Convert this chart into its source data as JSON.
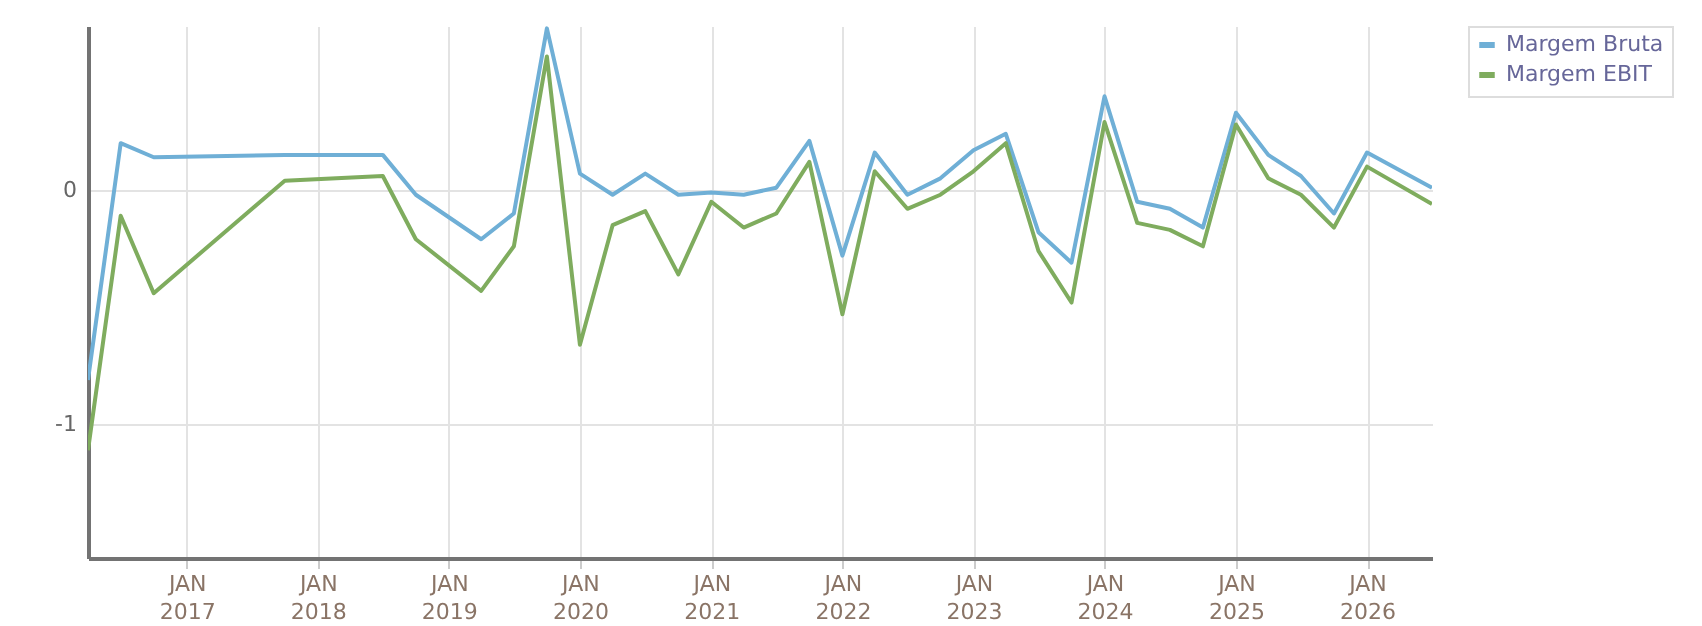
{
  "chart_data": {
    "type": "line",
    "x": [
      "2016-04",
      "2016-07",
      "2016-10",
      "2017-10",
      "2018-07",
      "2018-10",
      "2019-04",
      "2019-07",
      "2019-10",
      "2020-01",
      "2020-04",
      "2020-07",
      "2020-10",
      "2021-01",
      "2021-04",
      "2021-07",
      "2021-10",
      "2022-01",
      "2022-04",
      "2022-07",
      "2022-10",
      "2023-01",
      "2023-04",
      "2023-07",
      "2023-10",
      "2024-01",
      "2024-04",
      "2024-07",
      "2024-10",
      "2025-01",
      "2025-04",
      "2025-07",
      "2025-10",
      "2026-01",
      "2026-07"
    ],
    "series": [
      {
        "name": "Margem Bruta",
        "color": "#6fafd6",
        "values": [
          -0.81,
          0.2,
          0.14,
          0.15,
          0.15,
          -0.02,
          -0.21,
          -0.1,
          0.69,
          0.07,
          -0.02,
          0.07,
          -0.02,
          -0.01,
          -0.02,
          0.01,
          0.21,
          -0.28,
          0.16,
          -0.02,
          0.05,
          0.17,
          0.24,
          -0.18,
          -0.31,
          0.4,
          -0.05,
          -0.08,
          -0.16,
          0.33,
          0.15,
          0.06,
          -0.1,
          0.16,
          0.01
        ]
      },
      {
        "name": "Margem EBIT",
        "color": "#7fac5e",
        "values": [
          -1.11,
          -0.11,
          -0.44,
          0.04,
          0.06,
          -0.21,
          -0.43,
          -0.24,
          0.57,
          -0.66,
          -0.15,
          -0.09,
          -0.36,
          -0.05,
          -0.16,
          -0.1,
          0.12,
          -0.53,
          0.08,
          -0.08,
          -0.02,
          0.08,
          0.2,
          -0.26,
          -0.48,
          0.29,
          -0.14,
          -0.17,
          -0.24,
          0.28,
          0.05,
          -0.02,
          -0.16,
          0.1,
          -0.06
        ]
      }
    ],
    "xlim": [
      "2016-04",
      "2026-07"
    ],
    "xticks": [
      {
        "value": "2017-01",
        "label": "JAN 2017"
      },
      {
        "value": "2018-01",
        "label": "JAN 2018"
      },
      {
        "value": "2019-01",
        "label": "JAN 2019"
      },
      {
        "value": "2020-01",
        "label": "JAN 2020"
      },
      {
        "value": "2021-01",
        "label": "JAN 2021"
      },
      {
        "value": "2022-01",
        "label": "JAN 2022"
      },
      {
        "value": "2023-01",
        "label": "JAN 2023"
      },
      {
        "value": "2024-01",
        "label": "JAN 2024"
      },
      {
        "value": "2025-01",
        "label": "JAN 2025"
      },
      {
        "value": "2026-01",
        "label": "JAN 2026"
      }
    ],
    "ylim": [
      -1.57,
      0.7
    ],
    "yticks": [
      -1,
      0
    ],
    "grid": true,
    "legend": "top right",
    "marker": "none",
    "line_style": "solid"
  }
}
